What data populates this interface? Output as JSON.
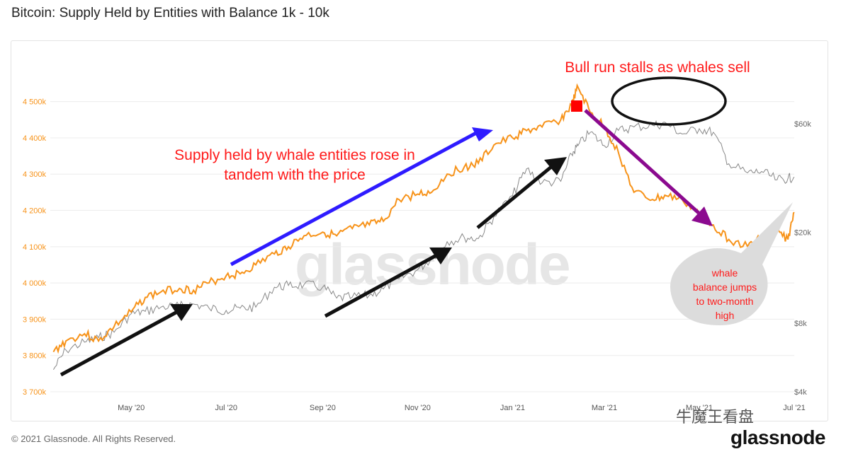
{
  "title": "Bitcoin: Supply Held by Entities with Balance 1k - 10k",
  "footer": {
    "copyright": "© 2021 Glassnode. All Rights Reserved.",
    "logo": "glassnode"
  },
  "watermark": "glassnode",
  "wechat_watermark": "牛魔王看盘",
  "colors": {
    "supply": "#f7931a",
    "price": "#888888",
    "annotation_red": "#ff1a1a",
    "arrow_blue": "#2e1bff",
    "arrow_black": "#111111",
    "arrow_purple": "#8b0a8f",
    "marker": "#ff0000",
    "bubble": "#dcdcdc"
  },
  "chart_data": {
    "type": "line",
    "title": "Bitcoin: Supply Held by Entities with Balance 1k - 10k",
    "x_ticks": [
      "May '20",
      "Jul '20",
      "Sep '20",
      "Nov '20",
      "Jan '21",
      "Mar '21",
      "May '21",
      "Jul '21"
    ],
    "y_left": {
      "ticks": [
        "3 700k",
        "3 800k",
        "3 900k",
        "4 000k",
        "4 100k",
        "4 200k",
        "4 300k",
        "4 400k",
        "4 500k"
      ],
      "range": [
        3700000,
        4550000
      ]
    },
    "y_right": {
      "ticks": [
        "$4k",
        "$8k",
        "$20k",
        "$60k"
      ],
      "scale": "log",
      "range": [
        4000,
        90000
      ]
    },
    "grid": true,
    "series": [
      {
        "axis": "left",
        "x": [
          "2020-03-12",
          "2020-03-20",
          "2020-04-01",
          "2020-04-10",
          "2020-04-20",
          "2020-05-01",
          "2020-05-10",
          "2020-05-20",
          "2020-06-01",
          "2020-06-10",
          "2020-06-20",
          "2020-07-01",
          "2020-07-10",
          "2020-07-20",
          "2020-08-01",
          "2020-08-10",
          "2020-08-20",
          "2020-09-01",
          "2020-09-10",
          "2020-09-20",
          "2020-10-01",
          "2020-10-10",
          "2020-10-20",
          "2020-11-01",
          "2020-11-10",
          "2020-11-20",
          "2020-12-01",
          "2020-12-10",
          "2020-12-20",
          "2021-01-01",
          "2021-01-10",
          "2021-01-20",
          "2021-02-01",
          "2021-02-08",
          "2021-02-12",
          "2021-02-20",
          "2021-03-01",
          "2021-03-10",
          "2021-03-20",
          "2021-04-01",
          "2021-04-10",
          "2021-04-20",
          "2021-05-01",
          "2021-05-10",
          "2021-05-20",
          "2021-06-01",
          "2021-06-10",
          "2021-06-20",
          "2021-06-27",
          "2021-07-01"
        ],
        "y": [
          3810000,
          3840000,
          3860000,
          3840000,
          3880000,
          3920000,
          3960000,
          3975000,
          3985000,
          3980000,
          4000000,
          4020000,
          4025000,
          4050000,
          4080000,
          4100000,
          4130000,
          4140000,
          4130000,
          4150000,
          4160000,
          4170000,
          4230000,
          4245000,
          4250000,
          4300000,
          4320000,
          4330000,
          4380000,
          4400000,
          4420000,
          4430000,
          4450000,
          4490000,
          4540000,
          4470000,
          4430000,
          4360000,
          4250000,
          4230000,
          4240000,
          4230000,
          4190000,
          4160000,
          4120000,
          4100000,
          4130000,
          4140000,
          4120000,
          4195000
        ]
      },
      {
        "axis": "right",
        "x": [
          "2020-03-12",
          "2020-03-20",
          "2020-04-01",
          "2020-04-10",
          "2020-04-20",
          "2020-05-01",
          "2020-05-10",
          "2020-05-20",
          "2020-06-01",
          "2020-06-10",
          "2020-06-20",
          "2020-07-01",
          "2020-07-10",
          "2020-07-20",
          "2020-08-01",
          "2020-08-10",
          "2020-08-20",
          "2020-09-01",
          "2020-09-10",
          "2020-09-20",
          "2020-10-01",
          "2020-10-10",
          "2020-10-20",
          "2020-11-01",
          "2020-11-10",
          "2020-11-20",
          "2020-12-01",
          "2020-12-10",
          "2020-12-20",
          "2021-01-01",
          "2021-01-10",
          "2021-01-20",
          "2021-02-01",
          "2021-02-08",
          "2021-02-12",
          "2021-02-20",
          "2021-03-01",
          "2021-03-10",
          "2021-03-20",
          "2021-04-01",
          "2021-04-10",
          "2021-04-20",
          "2021-05-01",
          "2021-05-10",
          "2021-05-20",
          "2021-06-01",
          "2021-06-10",
          "2021-06-20",
          "2021-06-27",
          "2021-07-01"
        ],
        "y": [
          5000,
          6100,
          6600,
          6900,
          7300,
          8800,
          9000,
          9400,
          9500,
          9700,
          9300,
          9100,
          9300,
          9400,
          11500,
          11700,
          11800,
          11500,
          10300,
          10400,
          10600,
          11300,
          12500,
          13700,
          15400,
          18200,
          19000,
          18800,
          23400,
          29000,
          38000,
          33000,
          33500,
          44000,
          48000,
          55000,
          48000,
          56000,
          58000,
          59000,
          60000,
          54000,
          57000,
          55000,
          40000,
          36500,
          37000,
          34000,
          34500,
          35000
        ]
      }
    ],
    "annotations": [
      "Bull run stalls as whales sell",
      "Supply held by whale entities rose in tandem with the price",
      "whale balance jumps to two-month high"
    ]
  }
}
